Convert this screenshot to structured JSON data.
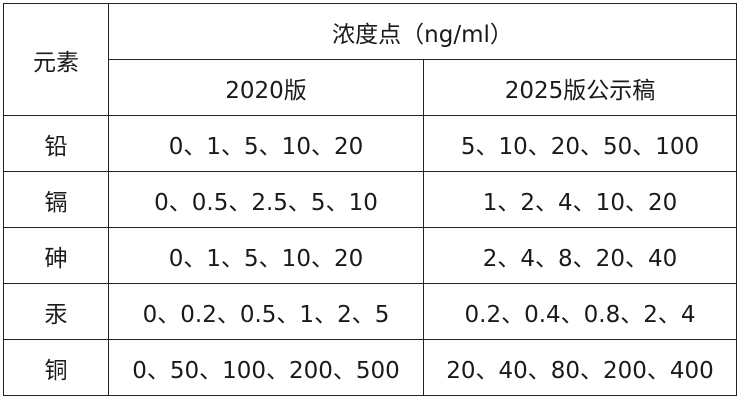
{
  "table": {
    "header": {
      "element": "元素",
      "concentration": "浓度点（ng/ml）",
      "versions": [
        "2020版",
        "2025版公示稿"
      ]
    },
    "rows": [
      {
        "element": "铅",
        "v2020": "0、1、5、10、20",
        "v2025": "5、10、20、50、100"
      },
      {
        "element": "镉",
        "v2020": "0、0.5、2.5、5、10",
        "v2025": "1、2、4、10、20"
      },
      {
        "element": "砷",
        "v2020": "0、1、5、10、20",
        "v2025": "2、4、8、20、40"
      },
      {
        "element": "汞",
        "v2020": "0、0.2、0.5、1、2、5",
        "v2025": "0.2、0.4、0.8、2、4"
      },
      {
        "element": "铜",
        "v2020": "0、50、100、200、500",
        "v2025": "20、40、80、200、400"
      }
    ]
  }
}
